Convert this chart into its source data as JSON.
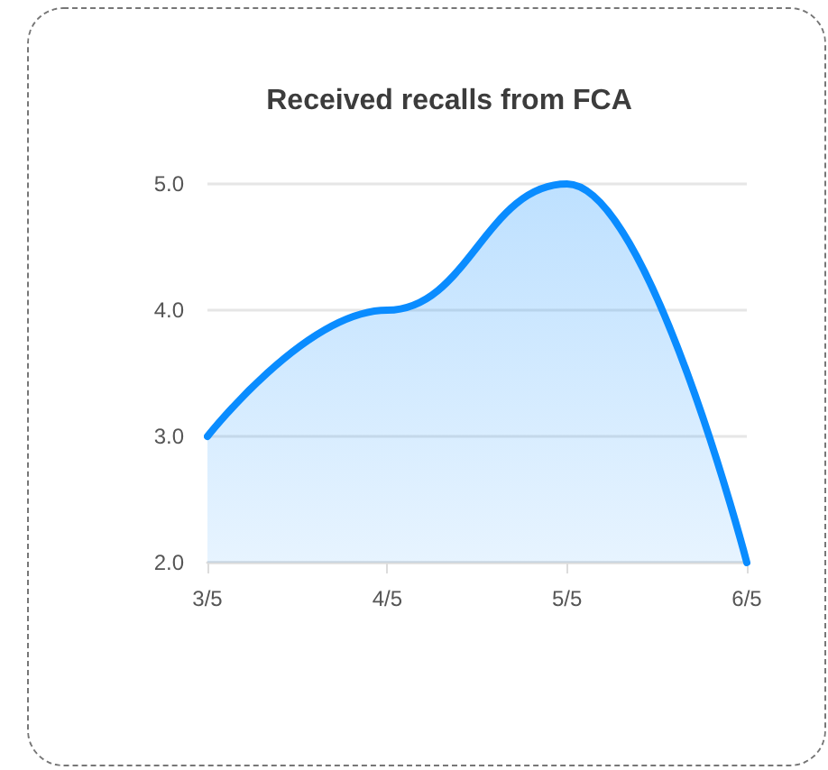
{
  "chart_data": {
    "type": "area",
    "title": "Received recalls from FCA",
    "categories": [
      "3/5",
      "4/5",
      "5/5",
      "6/5"
    ],
    "values": [
      3,
      4,
      5,
      2
    ],
    "color": "#0a8cff",
    "ylim": [
      2,
      5
    ],
    "yticks": [
      {
        "value": 2,
        "label": "2.0"
      },
      {
        "value": 3,
        "label": "3.0"
      },
      {
        "value": 4,
        "label": "4.0"
      },
      {
        "value": 5,
        "label": "5.0"
      }
    ],
    "grid": "y",
    "marker": "none",
    "line_style": "solid"
  }
}
